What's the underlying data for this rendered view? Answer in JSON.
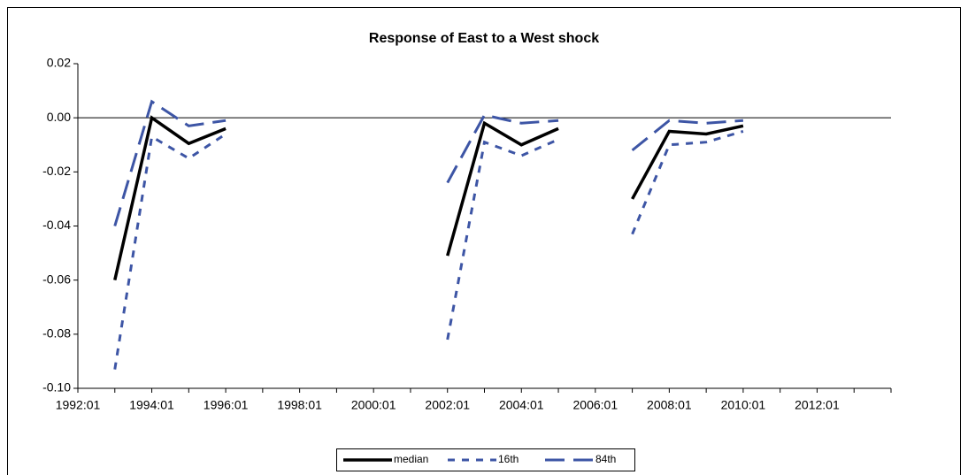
{
  "chart_data": {
    "type": "line",
    "title": "Response of East to a West shock",
    "categories": [
      "1992:01",
      null,
      "1994:01",
      null,
      "1996:01",
      null,
      "1998:01",
      null,
      "2000:01",
      null,
      "2002:01",
      null,
      "2004:01",
      null,
      "2006:01",
      null,
      "2008:01",
      null,
      "2010:01",
      null,
      "2012:01",
      null
    ],
    "series": [
      {
        "name": "median",
        "color": "#000000",
        "dash": "solid",
        "values": [
          null,
          -0.06,
          0.0,
          -0.0095,
          -0.004,
          null,
          null,
          null,
          null,
          null,
          -0.051,
          -0.002,
          -0.01,
          -0.004,
          null,
          -0.03,
          -0.005,
          -0.006,
          -0.003,
          null,
          null,
          null
        ]
      },
      {
        "name": "16th",
        "color": "#3d55a5",
        "dash": "short",
        "values": [
          null,
          -0.093,
          -0.007,
          -0.015,
          -0.006,
          null,
          null,
          null,
          null,
          null,
          -0.082,
          -0.009,
          -0.014,
          -0.008,
          null,
          -0.043,
          -0.01,
          -0.009,
          -0.005,
          null,
          null,
          null
        ]
      },
      {
        "name": "84th",
        "color": "#3d55a5",
        "dash": "long",
        "values": [
          null,
          -0.04,
          0.006,
          -0.003,
          -0.001,
          null,
          null,
          null,
          null,
          null,
          -0.024,
          0.001,
          -0.002,
          -0.001,
          null,
          -0.012,
          -0.001,
          -0.002,
          -0.001,
          null,
          null,
          null
        ]
      }
    ],
    "ylim": [
      -0.1,
      0.02
    ],
    "yticks": [
      0.02,
      {
        "value": 0,
        "label": "0.00"
      },
      -0.02,
      -0.04,
      -0.06,
      -0.08,
      {
        "value": -0.1,
        "label": "-0.10"
      }
    ],
    "legend": "bottom"
  }
}
